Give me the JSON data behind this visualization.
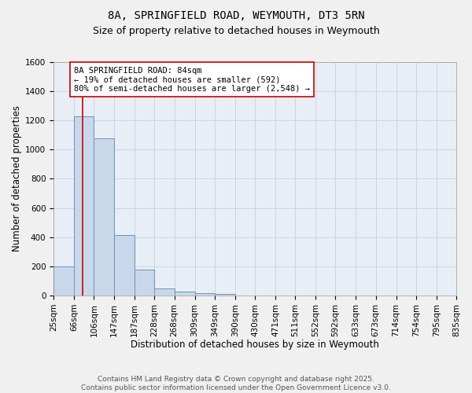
{
  "title": "8A, SPRINGFIELD ROAD, WEYMOUTH, DT3 5RN",
  "subtitle": "Size of property relative to detached houses in Weymouth",
  "xlabel": "Distribution of detached houses by size in Weymouth",
  "ylabel": "Number of detached properties",
  "bar_edges": [
    25,
    66,
    106,
    147,
    187,
    228,
    268,
    309,
    349,
    390,
    430,
    471,
    511,
    552,
    592,
    633,
    673,
    714,
    754,
    795,
    835
  ],
  "bar_heights": [
    200,
    1230,
    1075,
    415,
    180,
    50,
    25,
    18,
    10,
    0,
    0,
    0,
    0,
    0,
    0,
    0,
    0,
    0,
    0,
    0
  ],
  "bar_color": "#c8d8ea",
  "bar_edgecolor": "#7090b8",
  "property_line_x": 84,
  "property_line_color": "#cc0000",
  "annotation_text": "8A SPRINGFIELD ROAD: 84sqm\n← 19% of detached houses are smaller (592)\n80% of semi-detached houses are larger (2,548) →",
  "annotation_box_edgecolor": "#cc0000",
  "annotation_box_facecolor": "#ffffff",
  "ylim": [
    0,
    1600
  ],
  "yticks": [
    0,
    200,
    400,
    600,
    800,
    1000,
    1200,
    1400,
    1600
  ],
  "tick_labels": [
    "25sqm",
    "66sqm",
    "106sqm",
    "147sqm",
    "187sqm",
    "228sqm",
    "268sqm",
    "309sqm",
    "349sqm",
    "390sqm",
    "430sqm",
    "471sqm",
    "511sqm",
    "552sqm",
    "592sqm",
    "633sqm",
    "673sqm",
    "714sqm",
    "754sqm",
    "795sqm",
    "835sqm"
  ],
  "grid_color": "#c8d0dc",
  "background_color": "#e8eef6",
  "fig_background_color": "#f0f0f0",
  "title_fontsize": 10,
  "subtitle_fontsize": 9,
  "axis_label_fontsize": 8.5,
  "tick_fontsize": 7.5,
  "annotation_fontsize": 7.5,
  "footer_text": "Contains HM Land Registry data © Crown copyright and database right 2025.\nContains public sector information licensed under the Open Government Licence v3.0.",
  "footer_fontsize": 6.5
}
